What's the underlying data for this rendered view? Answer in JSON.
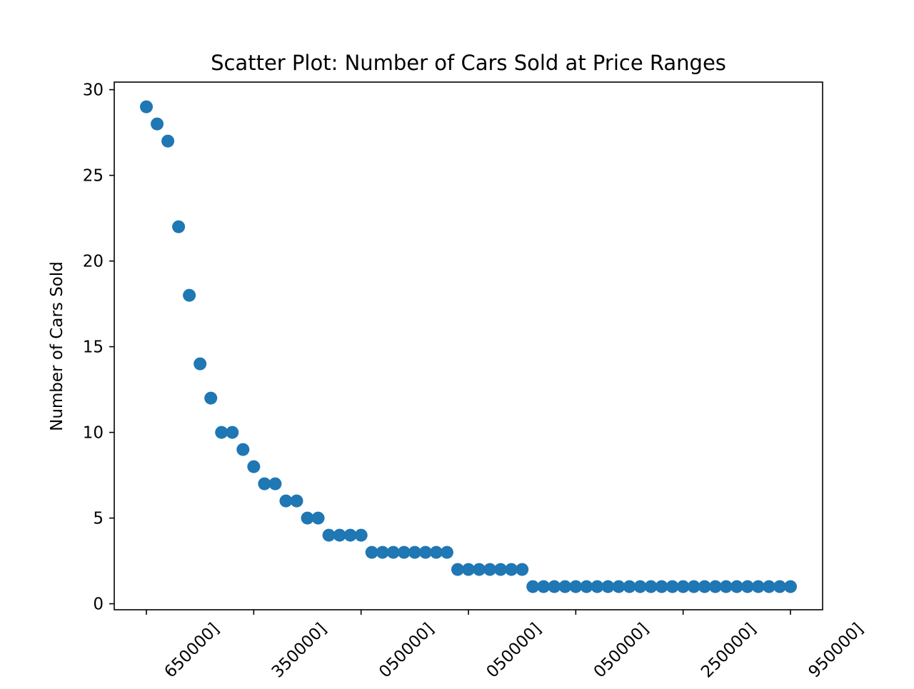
{
  "chart_data": {
    "type": "scatter",
    "title": "Scatter Plot: Number of Cars Sold at Price Ranges",
    "xlabel": "",
    "ylabel": "Number of Cars Sold",
    "y_ticks": [
      0,
      5,
      10,
      15,
      20,
      25,
      30
    ],
    "x_tick_labels": [
      "650000]",
      "350000]",
      "050000]",
      "050000]",
      "050000]",
      "250000]",
      "950000]"
    ],
    "ylim": [
      -0.3,
      30.5
    ],
    "grid": false,
    "marker_color": "#1f77b4",
    "series": [
      {
        "values": [
          29,
          28,
          27,
          22,
          18,
          14,
          12,
          10,
          10,
          9,
          8,
          7,
          7,
          6,
          6,
          5,
          5,
          4,
          4,
          4,
          4,
          3,
          3,
          3,
          3,
          3,
          3,
          3,
          3,
          2,
          2,
          2,
          2,
          2,
          2,
          2,
          1,
          1,
          1,
          1,
          1,
          1,
          1,
          1,
          1,
          1,
          1,
          1,
          1,
          1,
          1,
          1,
          1,
          1,
          1,
          1,
          1,
          1,
          1,
          1,
          1
        ]
      }
    ]
  }
}
